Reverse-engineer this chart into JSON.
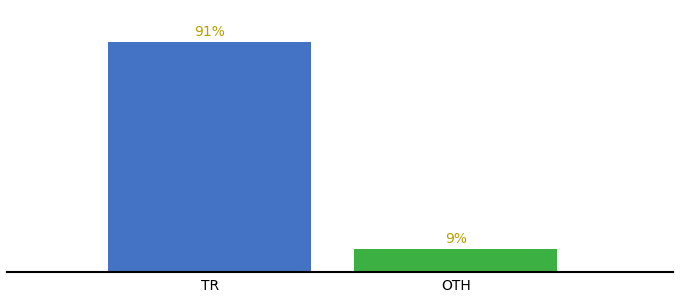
{
  "categories": [
    "TR",
    "OTH"
  ],
  "values": [
    91,
    9
  ],
  "bar_colors": [
    "#4472c4",
    "#3cb043"
  ],
  "value_labels": [
    "91%",
    "9%"
  ],
  "label_color": "#b8a000",
  "background_color": "#ffffff",
  "bar_width": 0.28,
  "ylim": [
    0,
    105
  ],
  "spine_color": "#000000",
  "tick_label_fontsize": 10,
  "value_fontsize": 10,
  "figsize": [
    6.8,
    3.0
  ],
  "dpi": 100,
  "x_positions": [
    0.28,
    0.62
  ]
}
